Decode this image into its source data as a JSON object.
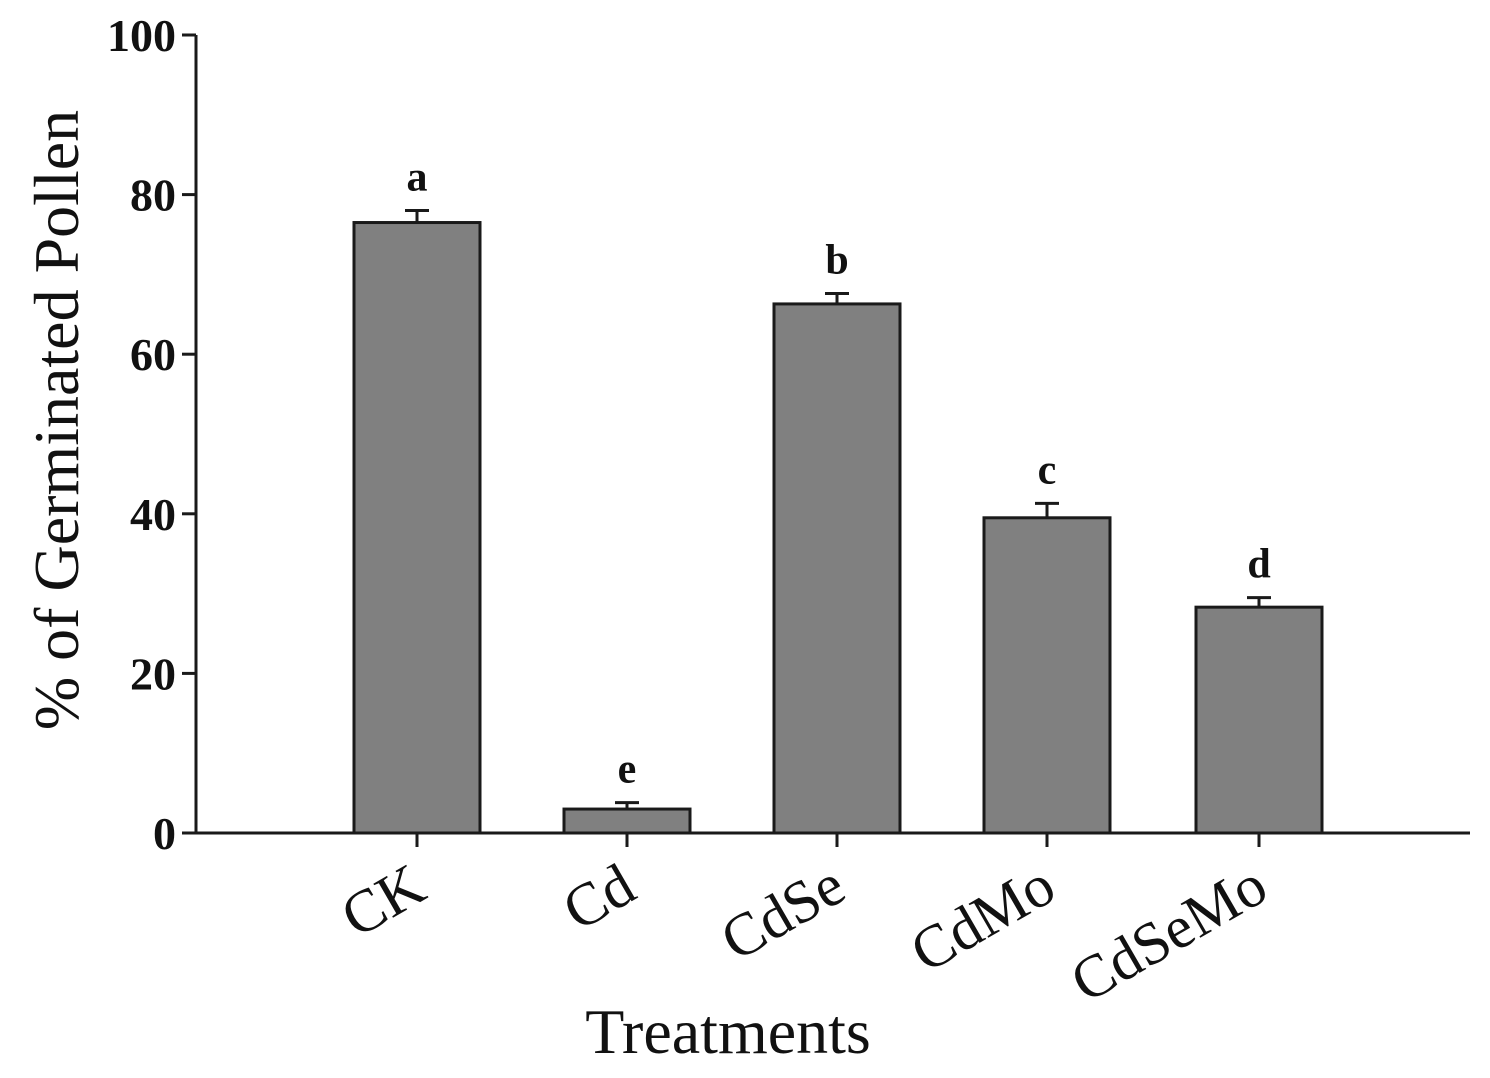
{
  "chart_data": {
    "type": "bar",
    "title": "",
    "xlabel": "Treatments",
    "ylabel": "% of Germinated Pollen",
    "ylim": [
      0,
      100
    ],
    "yticks": [
      0,
      20,
      40,
      60,
      80,
      100
    ],
    "categories": [
      "CK",
      "Cd",
      "CdSe",
      "CdMo",
      "CdSeMo"
    ],
    "values": [
      76.5,
      3,
      66.3,
      39.5,
      28.3
    ],
    "errors": [
      1.5,
      0.8,
      1.3,
      1.8,
      1.2
    ],
    "significance": [
      "a",
      "e",
      "b",
      "c",
      "d"
    ],
    "bar_color": "#808080",
    "axis_color": "#1a1a1a",
    "grid": false
  }
}
